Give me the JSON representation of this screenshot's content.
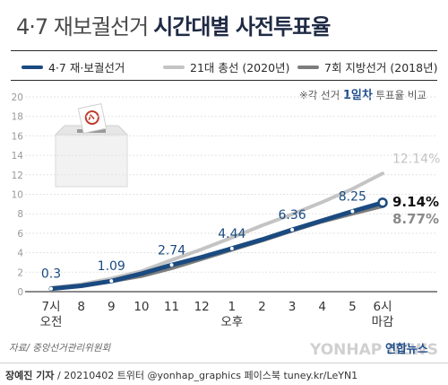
{
  "title": {
    "part1": "4·7 재보궐선거",
    "part2": "시간대별 사전투표율"
  },
  "legend": [
    {
      "label": "4·7 재·보궐선거",
      "color": "#1a4a80"
    },
    {
      "label": "21대 총선 (2020년)",
      "color": "#c4c4c4"
    },
    {
      "label": "7회 지방선거 (2018년)",
      "color": "#7d7d7d"
    }
  ],
  "note": {
    "prefix": "※각 선거 ",
    "highlight": "1일차",
    "suffix": " 투표율 비교"
  },
  "chart_data": {
    "type": "line",
    "x": [
      "7시\n오전",
      "8",
      "9",
      "10",
      "11",
      "12",
      "1\n오후",
      "2",
      "3",
      "4",
      "5",
      "6시\n마감"
    ],
    "ylim": [
      0,
      20
    ],
    "yticks": [
      0,
      2,
      4,
      6,
      8,
      10,
      12,
      14,
      16,
      18,
      20
    ],
    "grid": true,
    "series": [
      {
        "name": "21대 총선 (2020년)",
        "color": "#c4c4c4",
        "values": [
          0.4,
          0.75,
          1.35,
          2.1,
          3.25,
          4.35,
          5.55,
          6.8,
          7.95,
          9.2,
          10.55,
          12.14
        ],
        "end_label": "12.14%"
      },
      {
        "name": "7회 지방선거 (2018년)",
        "color": "#7d7d7d",
        "values": [
          0.28,
          0.6,
          1.05,
          1.6,
          2.4,
          3.35,
          4.3,
          5.25,
          6.25,
          7.2,
          8.0,
          8.77
        ],
        "end_label": "8.77%"
      },
      {
        "name": "4·7 재·보궐선거",
        "color": "#1a4a80",
        "values": [
          0.3,
          0.6,
          1.09,
          1.85,
          2.74,
          3.55,
          4.44,
          5.35,
          6.36,
          7.3,
          8.25,
          9.14
        ],
        "end_label": "9.14%",
        "data_labels": [
          {
            "index": 0,
            "text": "0.3"
          },
          {
            "index": 2,
            "text": "1.09"
          },
          {
            "index": 4,
            "text": "2.74"
          },
          {
            "index": 6,
            "text": "4.44"
          },
          {
            "index": 8,
            "text": "6.36"
          },
          {
            "index": 10,
            "text": "8.25"
          }
        ]
      }
    ]
  },
  "source": "자료/ 중앙선거관리위원회",
  "footer": {
    "reporter": "장예진 기자",
    "info": "/ 20210402 트위터 @yonhap_graphics  페이스북 tuney.kr/LeYN1"
  },
  "logo": {
    "watermark": "YONHAP NEWS",
    "brand": "연합뉴스"
  }
}
